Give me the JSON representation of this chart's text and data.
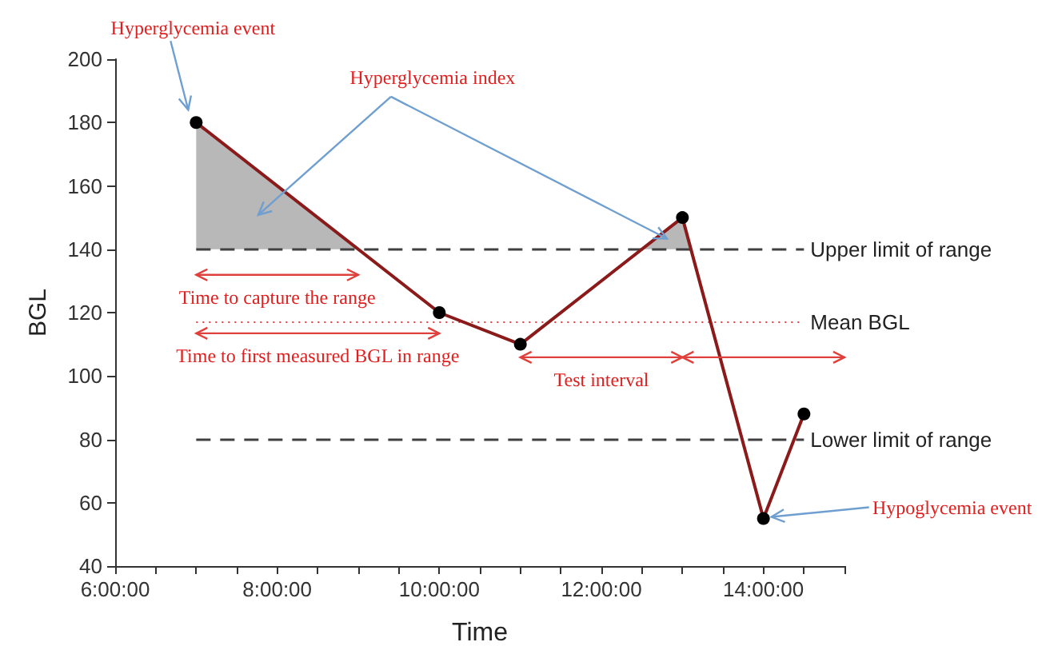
{
  "chart_data": {
    "type": "line",
    "xlabel": "Time",
    "ylabel": "BGL",
    "xlim": [
      6,
      15
    ],
    "ylim": [
      40,
      200
    ],
    "xticks": [
      {
        "value": 6,
        "label": "6:00:00"
      },
      {
        "value": 6.5,
        "label": null
      },
      {
        "value": 7,
        "label": null
      },
      {
        "value": 7.5,
        "label": null
      },
      {
        "value": 8,
        "label": "8:00:00"
      },
      {
        "value": 8.5,
        "label": null
      },
      {
        "value": 9,
        "label": null
      },
      {
        "value": 9.5,
        "label": null
      },
      {
        "value": 10,
        "label": "10:00:00"
      },
      {
        "value": 10.5,
        "label": null
      },
      {
        "value": 11,
        "label": null
      },
      {
        "value": 11.5,
        "label": null
      },
      {
        "value": 12,
        "label": "12:00:00"
      },
      {
        "value": 12.5,
        "label": null
      },
      {
        "value": 13,
        "label": null
      },
      {
        "value": 13.5,
        "label": null
      },
      {
        "value": 14,
        "label": "14:00:00"
      },
      {
        "value": 14.5,
        "label": null
      },
      {
        "value": 15,
        "label": null
      }
    ],
    "yticks": [
      40,
      60,
      80,
      100,
      120,
      140,
      160,
      180,
      200
    ],
    "grid": false,
    "series": [
      {
        "color": "#8b1a1a",
        "marker": "circle",
        "line_style": "solid",
        "x": [
          7,
          10,
          11,
          13,
          14,
          14.5
        ],
        "values": [
          180,
          120,
          110,
          150,
          55,
          88
        ]
      }
    ],
    "ref_lines": [
      {
        "axis": "y",
        "value": 140,
        "label": "Upper limit of range",
        "color": "#404040",
        "line_style": "dashed"
      },
      {
        "axis": "y",
        "value": 117,
        "label": "Mean BGL",
        "color": "#e0403c",
        "line_style": "dotted"
      },
      {
        "axis": "y",
        "value": 80,
        "label": "Lower limit of range",
        "color": "#404040",
        "line_style": "dashed"
      }
    ],
    "annotations": [
      "Hyperglycemia event",
      "Hyperglycemia index",
      "Time to capture the range",
      "Time to first measured BGL in range",
      "Test interval",
      {
        "text": "Hypoglycemia event",
        "x": 14,
        "y": 55
      }
    ]
  }
}
